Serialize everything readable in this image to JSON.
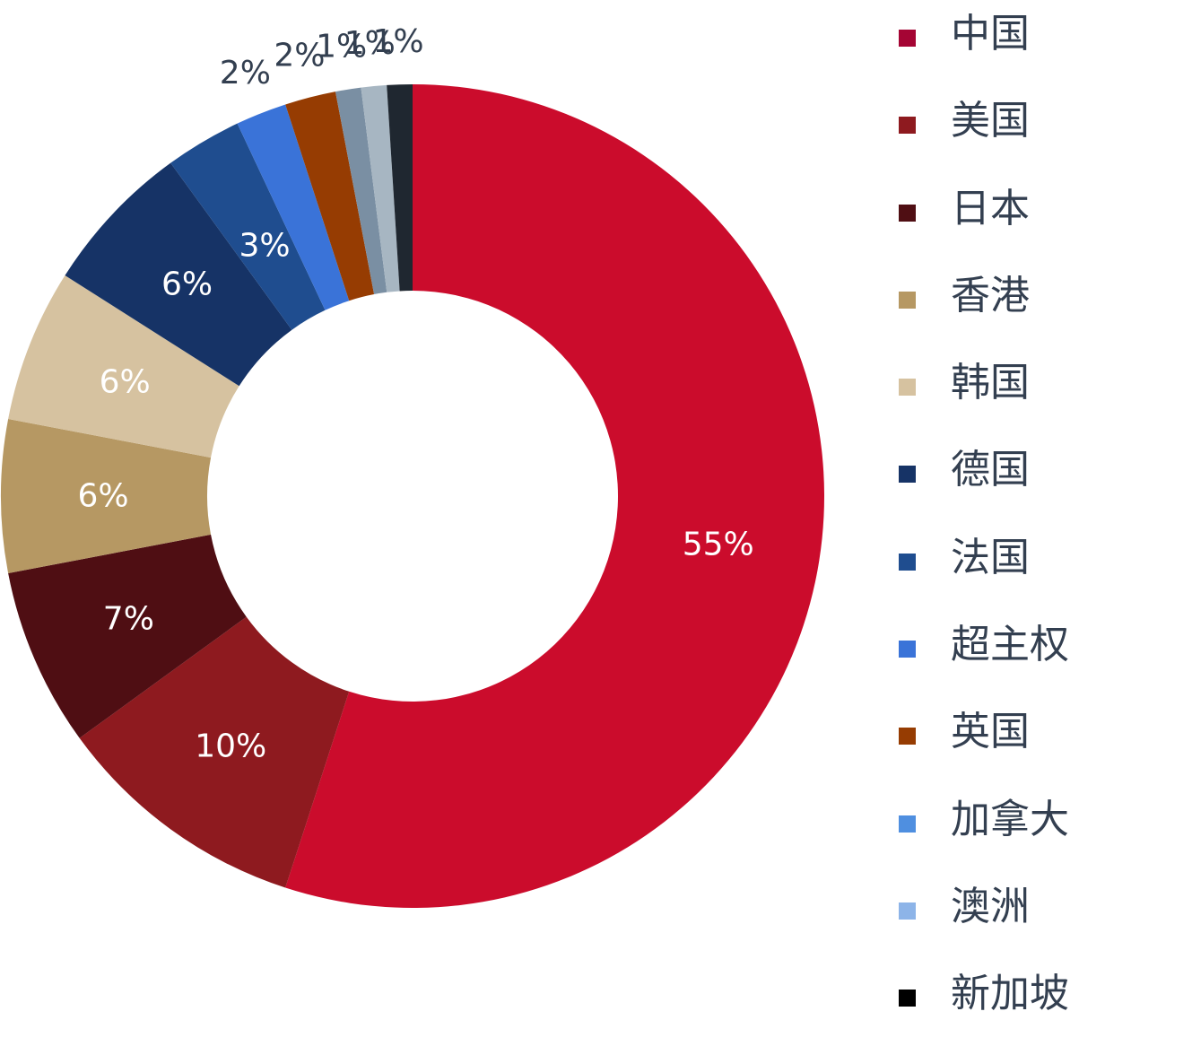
{
  "chart_data": {
    "type": "pie",
    "variant": "donut",
    "title": "",
    "legend_position": "right",
    "slices": [
      {
        "label": "中国",
        "value": 55,
        "display": "55%",
        "color": "#cb0c2c"
      },
      {
        "label": "美国",
        "value": 10,
        "display": "10%",
        "color": "#8e1a1f"
      },
      {
        "label": "日本",
        "value": 7,
        "display": "7%",
        "color": "#4f0e13"
      },
      {
        "label": "香港",
        "value": 6,
        "display": "6%",
        "color": "#b69863"
      },
      {
        "label": "韩国",
        "value": 6,
        "display": "6%",
        "color": "#d6c2a0"
      },
      {
        "label": "德国",
        "value": 6,
        "display": "6%",
        "color": "#163366"
      },
      {
        "label": "法国",
        "value": 3,
        "display": "3%",
        "color": "#1f4d8f"
      },
      {
        "label": "超主权",
        "value": 2,
        "display": "2%",
        "color": "#3a73d8"
      },
      {
        "label": "英国",
        "value": 2,
        "display": "2%",
        "color": "#963c02"
      },
      {
        "label": "加拿大",
        "value": 1,
        "display": "1%",
        "color": "#7a8fa3"
      },
      {
        "label": "澳洲",
        "value": 1,
        "display": "1%",
        "color": "#a7b6c2"
      },
      {
        "label": "新加坡",
        "value": 1,
        "display": "1%",
        "color": "#1f2730"
      }
    ],
    "legend_colors": [
      "#a50534",
      "#8e1a1f",
      "#4f0e13",
      "#b69863",
      "#d6c2a0",
      "#163366",
      "#1f4d8f",
      "#3a73d8",
      "#963c02",
      "#4f8fe0",
      "#8db4e8",
      "#000000"
    ]
  }
}
